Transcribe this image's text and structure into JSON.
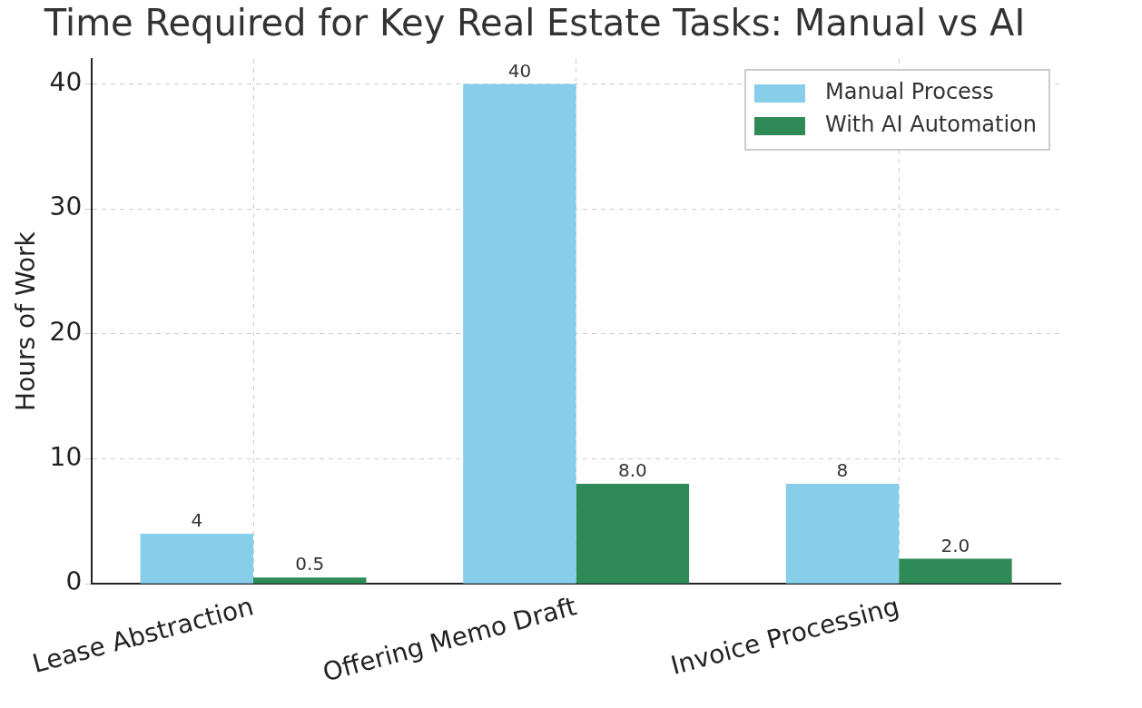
{
  "chart_data": {
    "type": "bar",
    "title": "Time Required for Key Real Estate Tasks: Manual vs AI",
    "ylabel": "Hours of Work",
    "categories": [
      "Lease Abstraction",
      "Offering Memo Draft",
      "Invoice Processing"
    ],
    "series": [
      {
        "name": "Manual Process",
        "color": "#87ceeb",
        "values": [
          4,
          40,
          8
        ],
        "value_labels": [
          "4",
          "40",
          "8"
        ]
      },
      {
        "name": "With AI Automation",
        "color": "#2e8b57",
        "values": [
          0.5,
          8,
          2
        ],
        "value_labels": [
          "0.5",
          "8.0",
          "2.0"
        ]
      }
    ],
    "ylim": [
      0,
      42
    ],
    "yticks": [
      0,
      10,
      20,
      30,
      40
    ],
    "grid": true,
    "legend": "top right"
  }
}
